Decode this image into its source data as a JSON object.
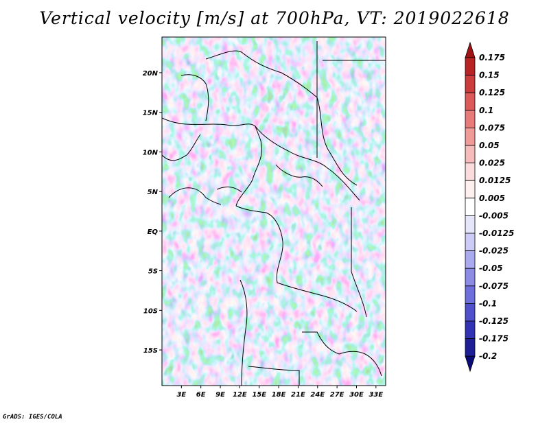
{
  "title": "Vertical velocity [m/s] at 700hPa, VT: 2019022618",
  "credit": "GrADS: IGES/COLA",
  "map": {
    "lon_ticks": [
      "3E",
      "6E",
      "9E",
      "12E",
      "15E",
      "18E",
      "21E",
      "24E",
      "27E",
      "30E",
      "33E"
    ],
    "lat_ticks": [
      "20N",
      "15N",
      "10N",
      "5N",
      "EQ",
      "5S",
      "10S",
      "15S"
    ],
    "lon_range": [
      0,
      34.5
    ],
    "lat_range": [
      -19.5,
      24.5
    ],
    "lon_tick_values": [
      3,
      6,
      9,
      12,
      15,
      18,
      21,
      24,
      27,
      30,
      33
    ],
    "lat_tick_values": [
      20,
      15,
      10,
      5,
      0,
      -5,
      -10,
      -15
    ]
  },
  "colorbar": {
    "labels": [
      "0.175",
      "0.15",
      "0.125",
      "0.1",
      "0.075",
      "0.05",
      "0.025",
      "0.0125",
      "0.005",
      "-0.005",
      "-0.0125",
      "-0.025",
      "-0.05",
      "-0.075",
      "-0.1",
      "-0.125",
      "-0.175",
      "-0.2"
    ],
    "colors": [
      "#a01414",
      "#b82424",
      "#cc3c3c",
      "#dc5a5a",
      "#e87a7a",
      "#f09a9a",
      "#f6bcbc",
      "#fadcdc",
      "#fff0f0",
      "#ffffff",
      "#e6e6fa",
      "#ccccf6",
      "#aaaaf0",
      "#8c8ce6",
      "#6e6edc",
      "#5050cc",
      "#3232b4",
      "#1e1e96",
      "#0a0a78"
    ]
  },
  "colors": {
    "positive": "#dc5a5a",
    "negative": "#6e6edc",
    "border": "#000000"
  }
}
